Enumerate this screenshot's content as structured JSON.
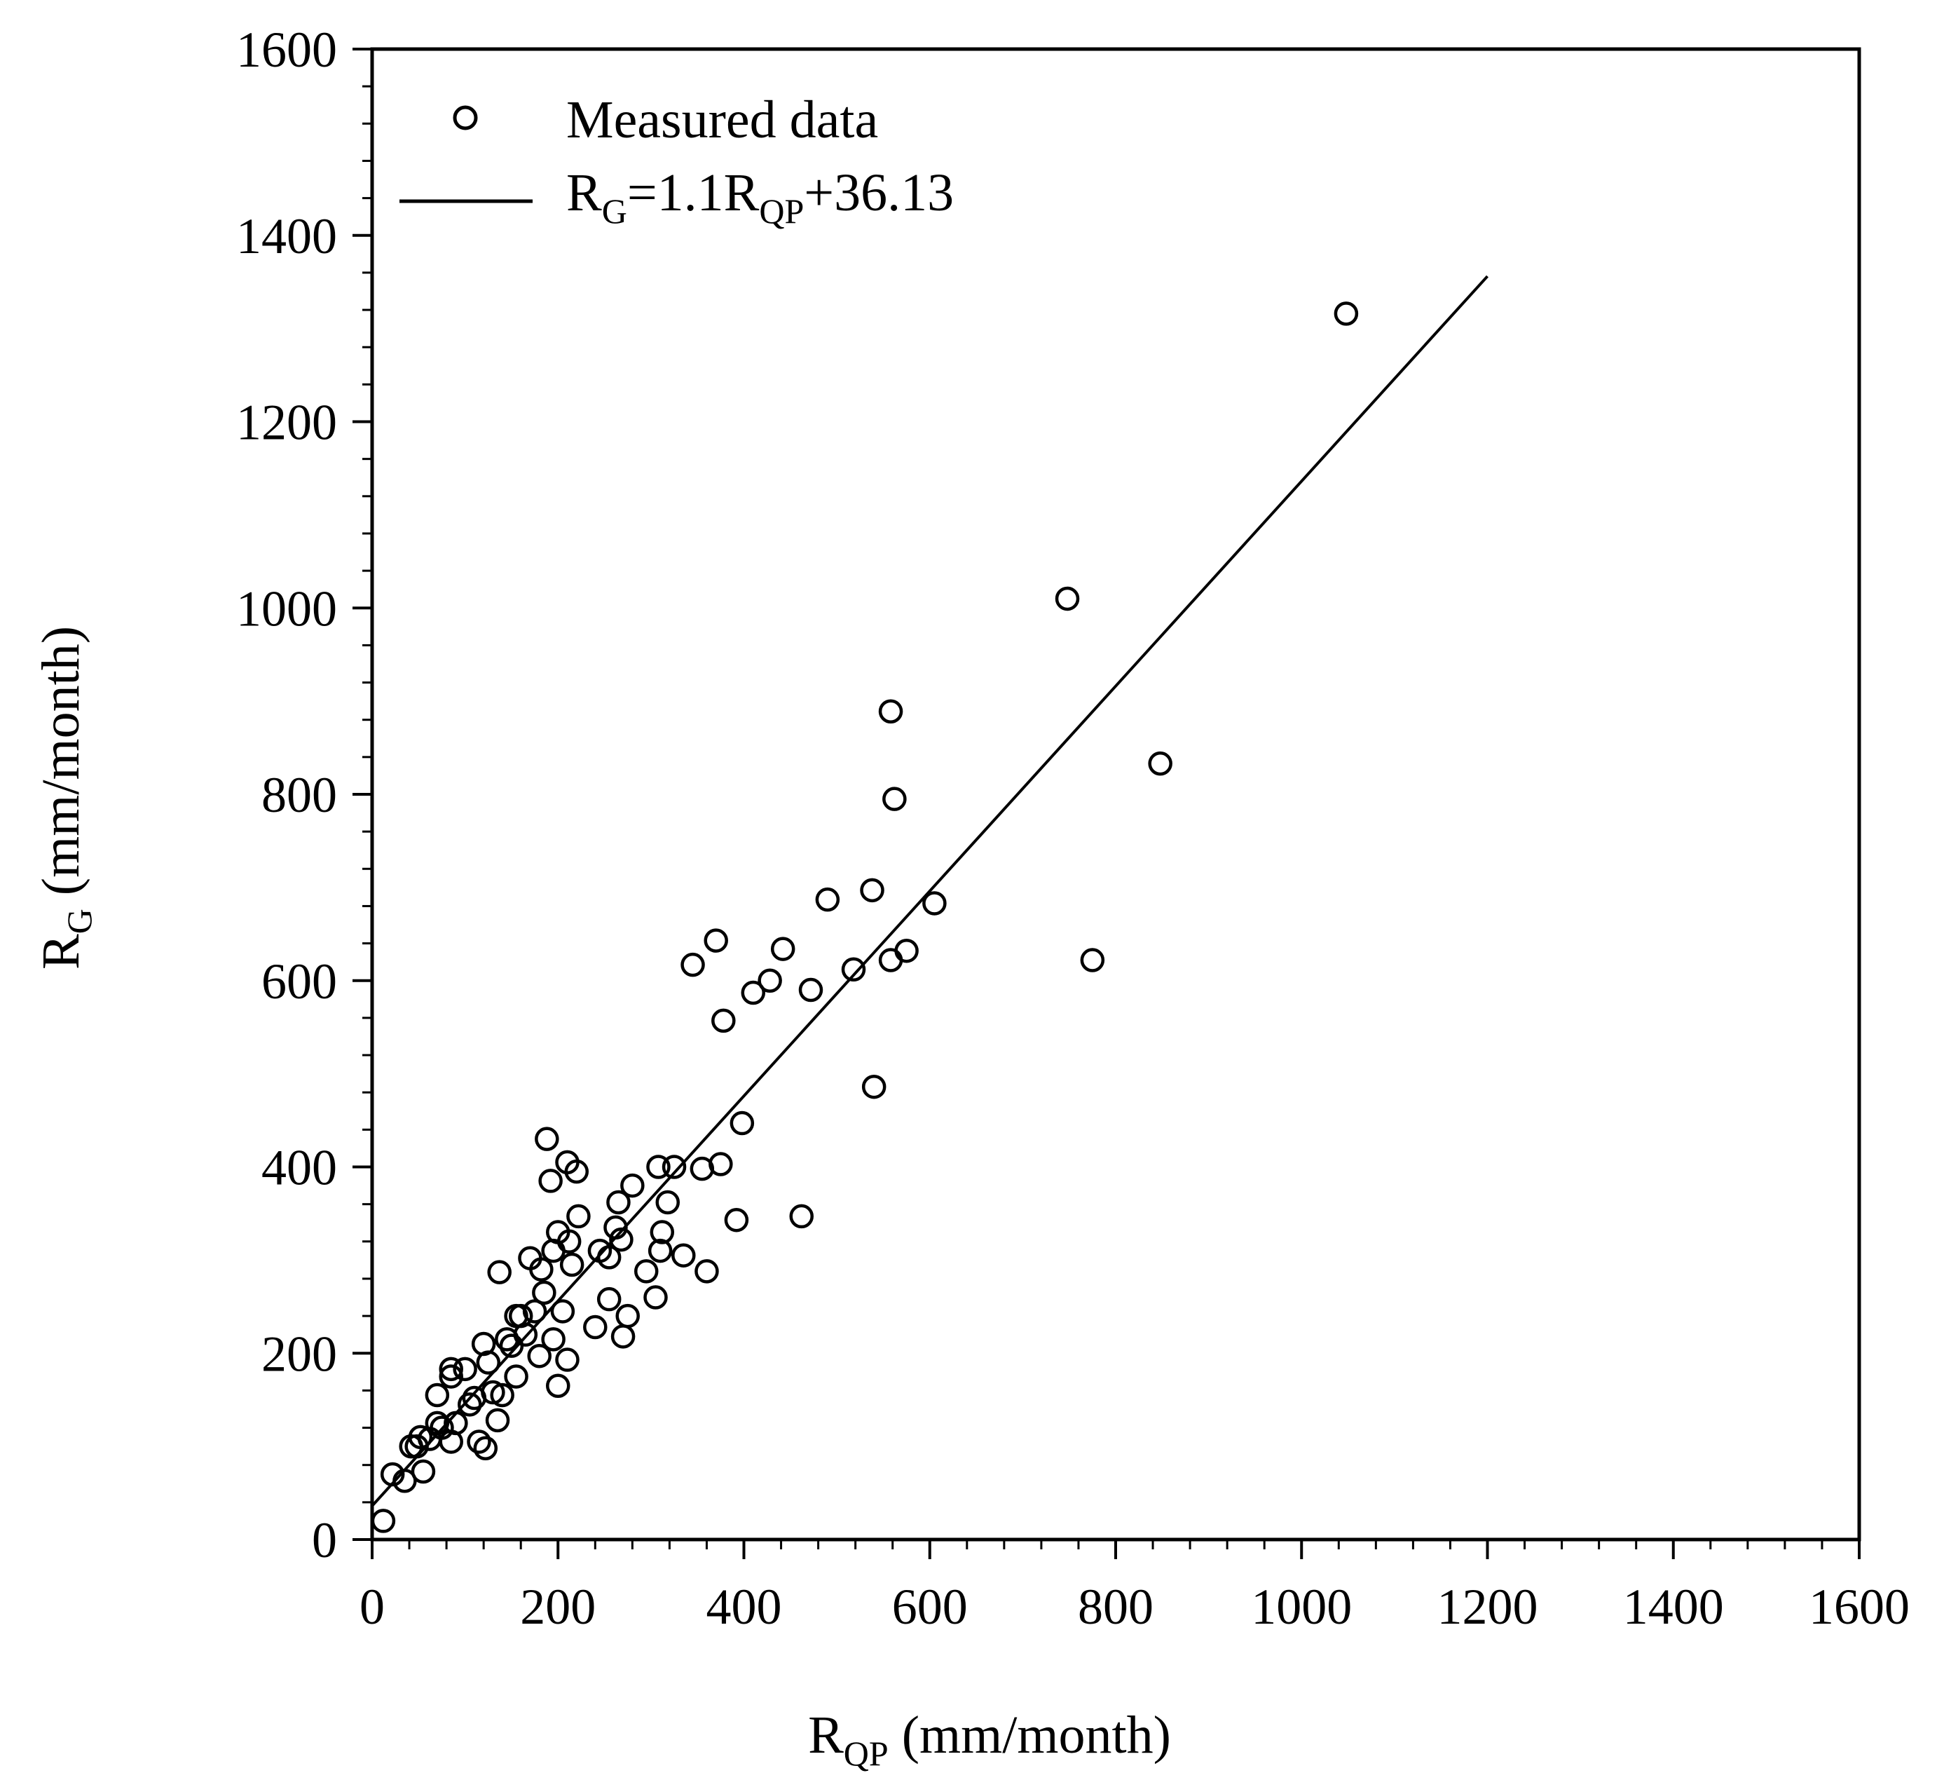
{
  "chart_data": {
    "type": "scatter",
    "xlabel": {
      "main": "R",
      "sub": "QP",
      "unit": " (mm/month)"
    },
    "ylabel": {
      "main": "R",
      "sub": "G",
      "unit": " (mm/month)"
    },
    "xlim": [
      0,
      1600
    ],
    "ylim": [
      0,
      1600
    ],
    "xticks": [
      "0",
      "200",
      "400",
      "600",
      "800",
      "1000",
      "1200",
      "1400",
      "1600"
    ],
    "yticks": [
      "0",
      "200",
      "400",
      "600",
      "800",
      "1000",
      "1200",
      "1400",
      "1600"
    ],
    "minor_tick_step": 40,
    "grid": false,
    "legend": {
      "position": "top-left",
      "entries": [
        {
          "kind": "marker",
          "label": "Measured data"
        },
        {
          "kind": "line",
          "label": {
            "p1": "R",
            "s1": "G",
            "p2": "=1.1R",
            "s2": "QP",
            "p3": "+36.13"
          }
        }
      ]
    },
    "fit_line": {
      "slope": 1.1,
      "intercept": 36.13,
      "x_range": [
        0,
        1200
      ]
    },
    "series": [
      {
        "name": "Measured data",
        "marker": "open-circle",
        "points": [
          [
            12,
            20
          ],
          [
            22,
            70
          ],
          [
            35,
            63
          ],
          [
            42,
            100
          ],
          [
            48,
            100
          ],
          [
            52,
            110
          ],
          [
            55,
            73
          ],
          [
            62,
            108
          ],
          [
            70,
            155
          ],
          [
            70,
            125
          ],
          [
            75,
            120
          ],
          [
            85,
            183
          ],
          [
            85,
            175
          ],
          [
            85,
            105
          ],
          [
            90,
            125
          ],
          [
            100,
            183
          ],
          [
            105,
            145
          ],
          [
            110,
            152
          ],
          [
            115,
            105
          ],
          [
            120,
            210
          ],
          [
            122,
            98
          ],
          [
            125,
            190
          ],
          [
            130,
            158
          ],
          [
            135,
            128
          ],
          [
            137,
            287
          ],
          [
            140,
            155
          ],
          [
            145,
            215
          ],
          [
            150,
            208
          ],
          [
            155,
            175
          ],
          [
            155,
            240
          ],
          [
            160,
            240
          ],
          [
            165,
            220
          ],
          [
            170,
            302
          ],
          [
            175,
            245
          ],
          [
            180,
            197
          ],
          [
            182,
            290
          ],
          [
            185,
            265
          ],
          [
            188,
            430
          ],
          [
            192,
            385
          ],
          [
            195,
            310
          ],
          [
            195,
            215
          ],
          [
            200,
            165
          ],
          [
            200,
            330
          ],
          [
            205,
            245
          ],
          [
            210,
            193
          ],
          [
            210,
            405
          ],
          [
            212,
            320
          ],
          [
            215,
            295
          ],
          [
            220,
            395
          ],
          [
            222,
            347
          ],
          [
            240,
            228
          ],
          [
            245,
            310
          ],
          [
            255,
            303
          ],
          [
            255,
            258
          ],
          [
            262,
            335
          ],
          [
            265,
            362
          ],
          [
            268,
            322
          ],
          [
            270,
            218
          ],
          [
            275,
            240
          ],
          [
            280,
            380
          ],
          [
            295,
            288
          ],
          [
            305,
            260
          ],
          [
            308,
            400
          ],
          [
            310,
            310
          ],
          [
            312,
            330
          ],
          [
            318,
            362
          ],
          [
            325,
            400
          ],
          [
            335,
            305
          ],
          [
            345,
            617
          ],
          [
            355,
            398
          ],
          [
            360,
            288
          ],
          [
            370,
            643
          ],
          [
            375,
            403
          ],
          [
            378,
            557
          ],
          [
            392,
            343
          ],
          [
            398,
            447
          ],
          [
            410,
            587
          ],
          [
            428,
            600
          ],
          [
            442,
            634
          ],
          [
            462,
            347
          ],
          [
            472,
            590
          ],
          [
            490,
            687
          ],
          [
            518,
            612
          ],
          [
            538,
            697
          ],
          [
            540,
            486
          ],
          [
            558,
            889
          ],
          [
            558,
            622
          ],
          [
            562,
            795
          ],
          [
            575,
            632
          ],
          [
            605,
            683
          ],
          [
            748,
            1010
          ],
          [
            775,
            622
          ],
          [
            848,
            833
          ],
          [
            1048,
            1316
          ]
        ]
      }
    ]
  }
}
